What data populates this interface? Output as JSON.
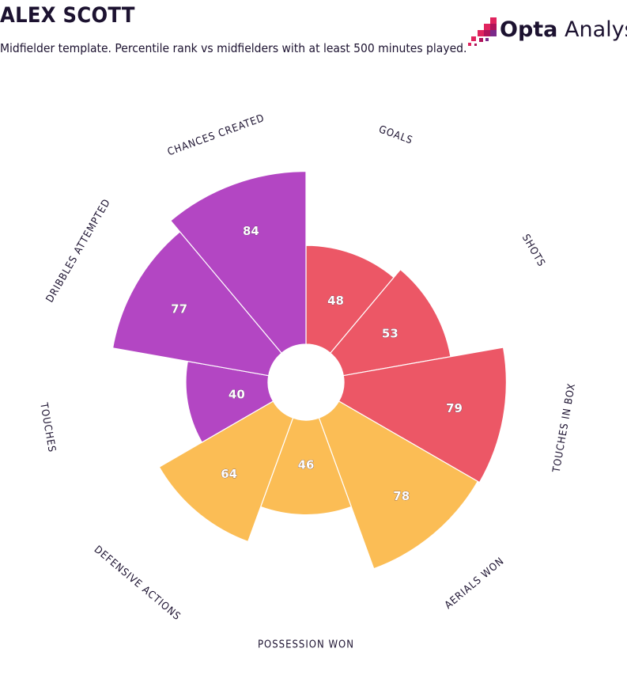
{
  "header": {
    "title": "ALEX SCOTT",
    "subtitle": "Midfielder template. Percentile rank vs midfielders with at least 500 minutes played."
  },
  "logo": {
    "brand_bold": "Opta",
    "brand_light": "Analyst",
    "accent": "#e0245e",
    "secondary": "#7a2a8a"
  },
  "colors": {
    "attacking": "#ec5766",
    "defending": "#fbbd55",
    "possession": "#b346c3"
  },
  "chart_data": {
    "type": "polar-area",
    "rmax": 100,
    "categories": [
      {
        "label": "GOALS",
        "value": 48,
        "group": "attacking"
      },
      {
        "label": "SHOTS",
        "value": 53,
        "group": "attacking"
      },
      {
        "label": "TOUCHES IN BOX",
        "value": 79,
        "group": "attacking"
      },
      {
        "label": "AERIALS WON",
        "value": 78,
        "group": "defending"
      },
      {
        "label": "POSSESSION WON",
        "value": 46,
        "group": "defending"
      },
      {
        "label": "DEFENSIVE ACTIONS",
        "value": 64,
        "group": "defending"
      },
      {
        "label": "TOUCHES",
        "value": 40,
        "group": "possession"
      },
      {
        "label": "DRIBBLES ATTEMPTED",
        "value": 77,
        "group": "possession"
      },
      {
        "label": "CHANCES CREATED",
        "value": 84,
        "group": "possession"
      }
    ]
  }
}
